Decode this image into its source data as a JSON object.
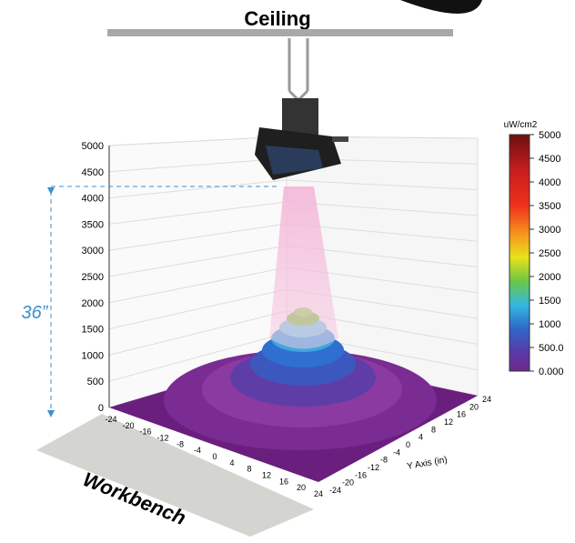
{
  "header": {
    "title": "Ceiling"
  },
  "distance_label": "36”",
  "bench_label": "Workbench",
  "z_axis": {
    "ticks": [
      "5000",
      "4500",
      "4000",
      "3500",
      "3000",
      "2500",
      "2000",
      "1500",
      "1000",
      "500",
      "0"
    ]
  },
  "x_axis": {
    "ticks": [
      "-24",
      "-20",
      "-16",
      "-12",
      "-8",
      "-4",
      "0",
      "4",
      "8",
      "12",
      "16",
      "20",
      "24"
    ]
  },
  "y_axis": {
    "label": "Y Axis (in)",
    "ticks": [
      "-24",
      "-20",
      "-16",
      "-12",
      "-8",
      "-4",
      "0",
      "4",
      "8",
      "12",
      "16",
      "20",
      "24"
    ]
  },
  "colorbar": {
    "unit": "uW/cm2",
    "ticks": [
      "5000",
      "4500",
      "4000",
      "3500",
      "3000",
      "2500",
      "2000",
      "1500",
      "1000",
      "500.0",
      "0.000"
    ]
  }
}
